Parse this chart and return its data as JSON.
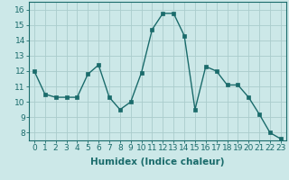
{
  "x": [
    0,
    1,
    2,
    3,
    4,
    5,
    6,
    7,
    8,
    9,
    10,
    11,
    12,
    13,
    14,
    15,
    16,
    17,
    18,
    19,
    20,
    21,
    22,
    23
  ],
  "y": [
    12.0,
    10.5,
    10.3,
    10.3,
    10.3,
    11.8,
    12.4,
    10.3,
    9.5,
    10.0,
    11.9,
    14.7,
    15.75,
    15.75,
    14.3,
    9.5,
    12.3,
    12.0,
    11.1,
    11.1,
    10.3,
    9.2,
    8.0,
    7.6
  ],
  "line_color": "#1a6b6b",
  "marker_color": "#1a6b6b",
  "bg_color": "#cce8e8",
  "grid_color": "#aacccc",
  "xlabel": "Humidex (Indice chaleur)",
  "ylabel_ticks": [
    8,
    9,
    10,
    11,
    12,
    13,
    14,
    15,
    16
  ],
  "xlim": [
    -0.5,
    23.5
  ],
  "ylim": [
    7.5,
    16.5
  ],
  "tick_label_color": "#1a6b6b",
  "axis_color": "#1a6b6b",
  "font_size": 6.5,
  "xlabel_fontsize": 7.5,
  "linewidth": 1.0,
  "markersize": 2.2
}
